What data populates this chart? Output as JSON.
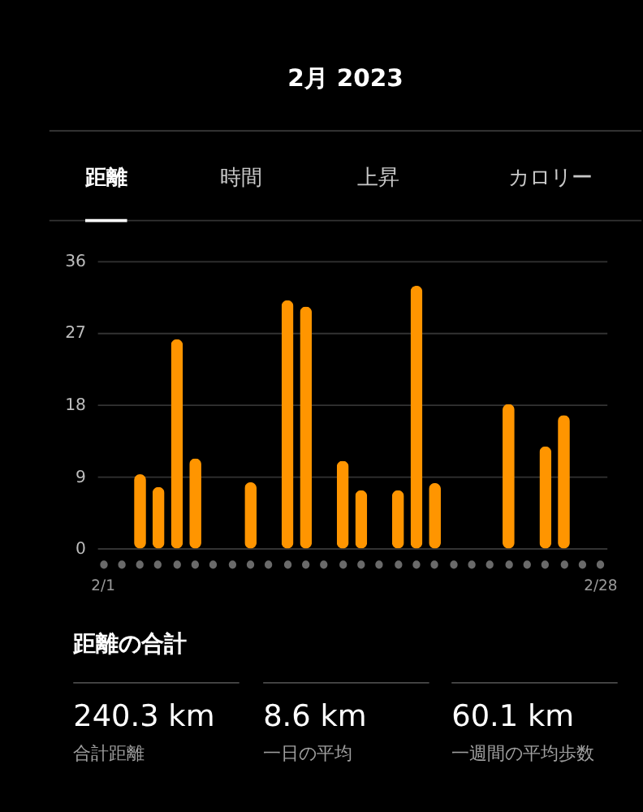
{
  "chart_data": [
    {
      "type": "other",
      "title": "2月 2023",
      "annotations": [
        "距離",
        "時間",
        "上昇",
        "カロリー"
      ]
    },
    {
      "type": "bar",
      "categories": [
        "2/1",
        null,
        null,
        null,
        null,
        null,
        null,
        null,
        null,
        null,
        null,
        null,
        null,
        null,
        null,
        null,
        null,
        null,
        null,
        null,
        null,
        null,
        null,
        null,
        null,
        null,
        null,
        "2/28"
      ],
      "values": [
        null,
        null,
        9.3,
        7.7,
        26.2,
        11.3,
        null,
        null,
        8.3,
        null,
        31.1,
        30.3,
        null,
        11.0,
        7.3,
        null,
        7.3,
        32.9,
        8.2,
        null,
        null,
        null,
        18.1,
        null,
        12.8,
        16.7,
        null,
        null
      ],
      "color": "#ff9500",
      "ylim": [
        0,
        36
      ],
      "yticks": [
        0,
        9,
        18,
        27,
        36
      ],
      "grid": "y"
    },
    {
      "type": "other",
      "title": "距離の合計",
      "annotations": [
        "240.3 km",
        "合計距離",
        "8.6 km",
        "一日の平均",
        "60.1 km",
        "一週間の平均歩数"
      ]
    }
  ]
}
